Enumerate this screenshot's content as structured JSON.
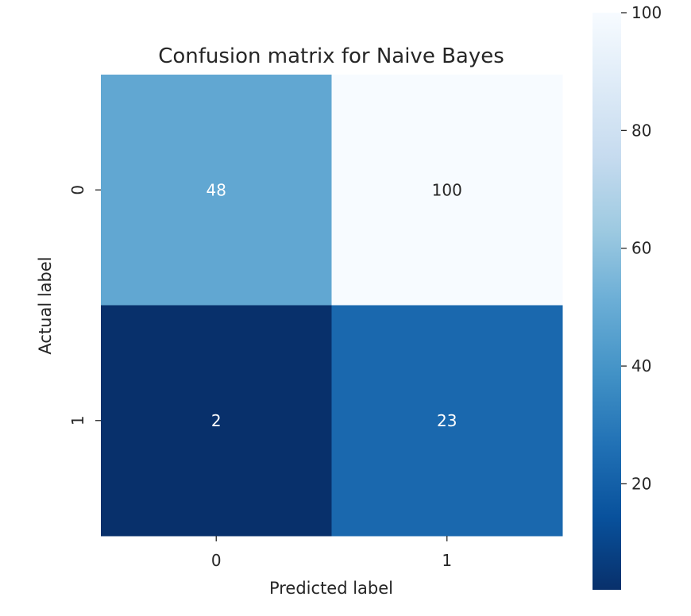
{
  "chart_data": {
    "type": "heatmap",
    "title": "Confusion matrix for Naive Bayes",
    "xlabel": "Predicted label",
    "ylabel": "Actual label",
    "x_categories": [
      "0",
      "1"
    ],
    "y_categories": [
      "0",
      "1"
    ],
    "values": [
      [
        48,
        100
      ],
      [
        2,
        23
      ]
    ],
    "colormap": "Blues_r",
    "color_range": [
      2,
      100
    ],
    "colorbar_ticks": [
      20,
      40,
      60,
      80,
      100
    ],
    "colorbar_tick_labels": [
      "20",
      "40",
      "60",
      "80",
      "100"
    ],
    "colors": {
      "low": "#08306b",
      "high": "#f7fbff",
      "text_light": "#ffffff",
      "text_dark": "#262626"
    },
    "legend": "right"
  }
}
